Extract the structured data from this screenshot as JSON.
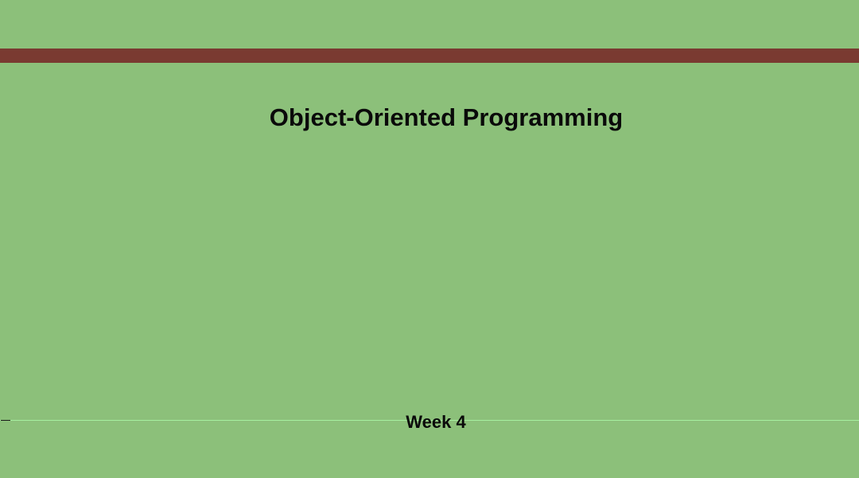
{
  "slide": {
    "title": "Object-Oriented Programming",
    "subtitle": "Week 4"
  },
  "colors": {
    "background": "#8cc07a",
    "accent_bar": "#7a3a31",
    "text": "#0a0a0a",
    "guide_line": "#a6f0a0"
  }
}
